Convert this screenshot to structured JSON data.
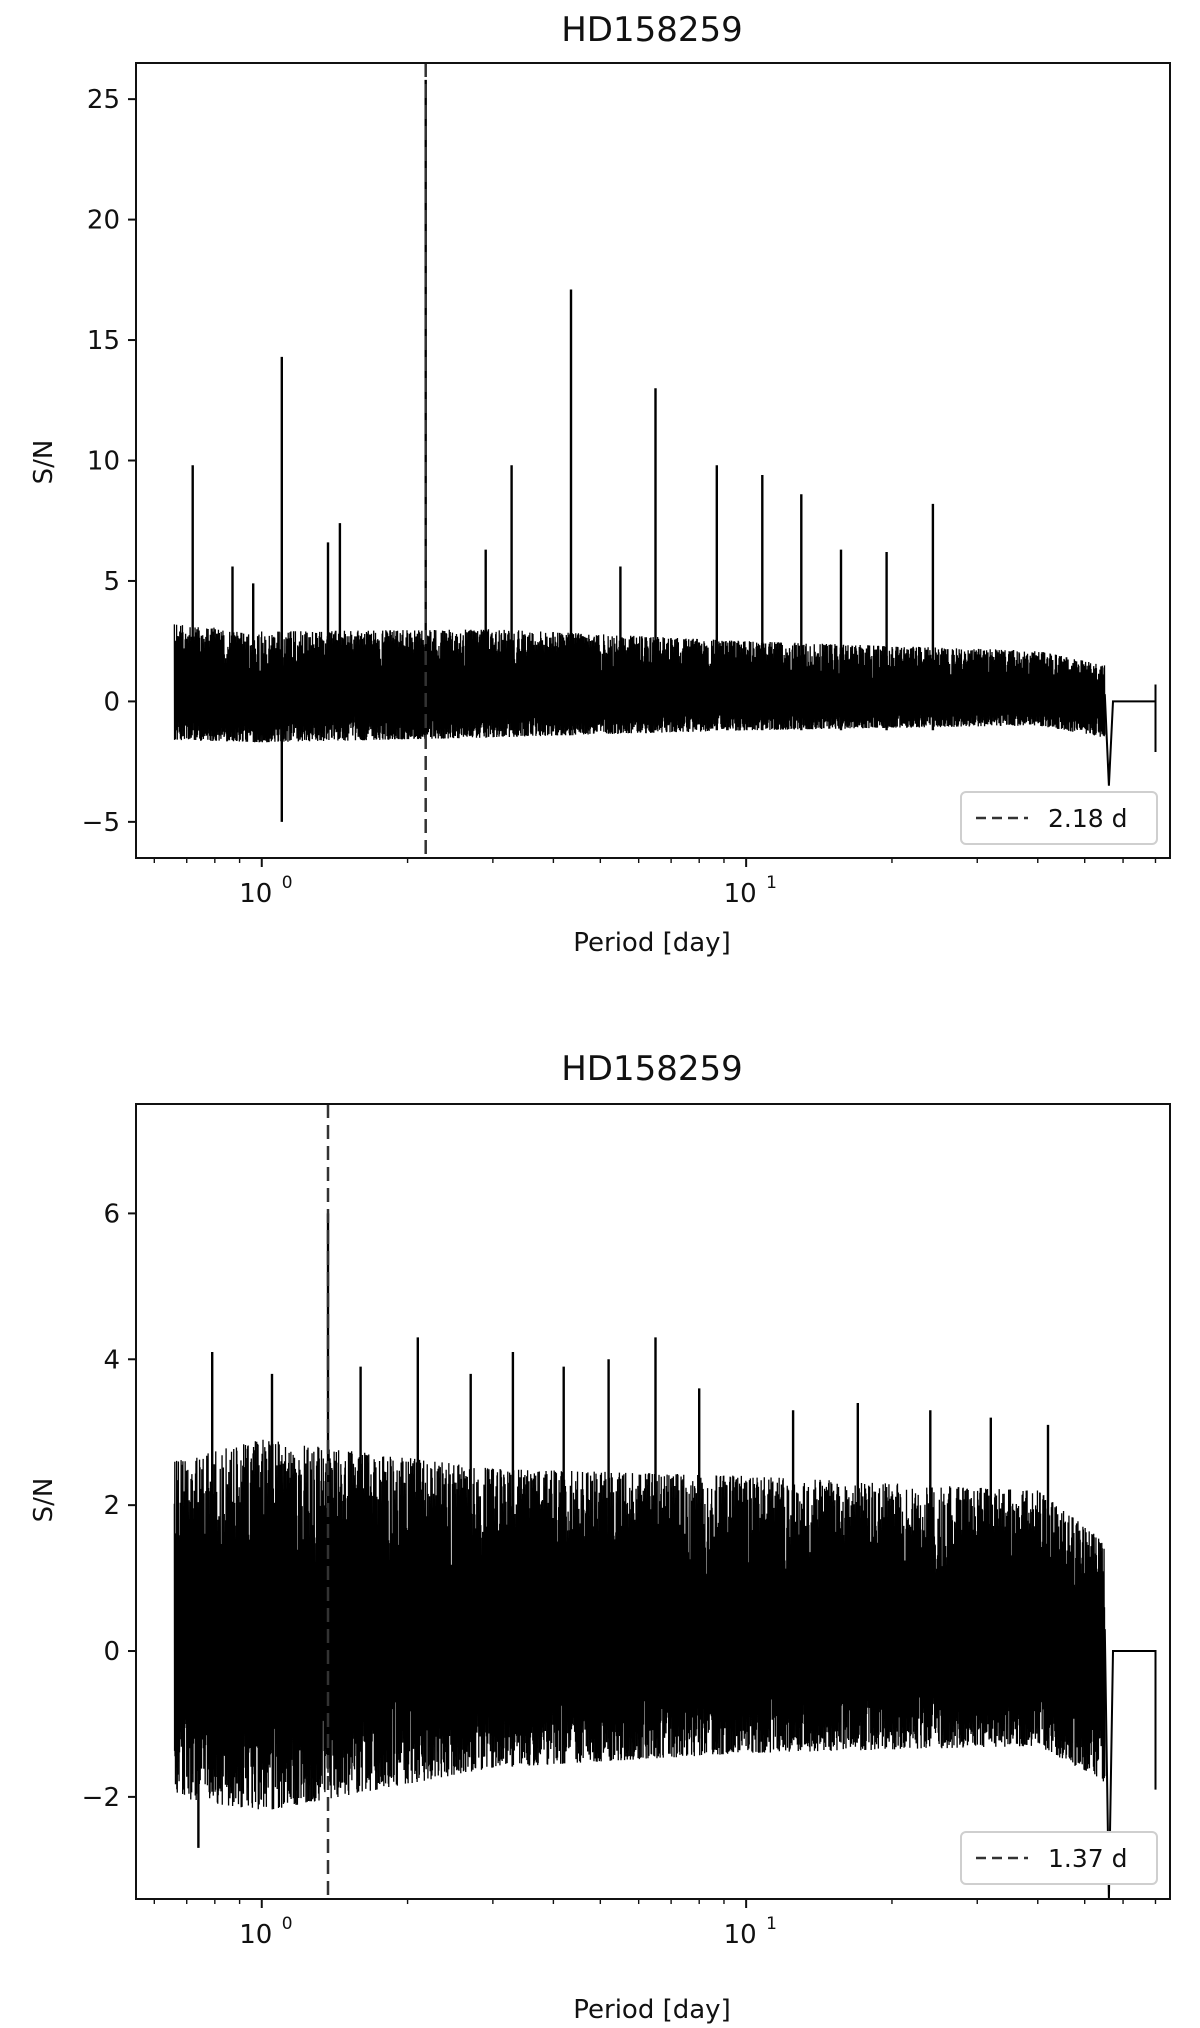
{
  "chart_data": [
    {
      "type": "line",
      "title": "HD158259",
      "xlabel": "Period [day]",
      "ylabel": "S/N",
      "xscale": "log",
      "xlim": [
        0.55,
        75
      ],
      "ylim": [
        -6.5,
        26.5
      ],
      "yticks": [
        -5,
        0,
        5,
        10,
        15,
        20,
        25
      ],
      "xticks": [
        {
          "base": "10",
          "exp": "0",
          "value": 1
        },
        {
          "base": "10",
          "exp": "1",
          "value": 10
        }
      ],
      "grid": false,
      "legend": {
        "position": "lower-right",
        "entries": [
          {
            "label": "2.18 d",
            "style": "dashed"
          }
        ]
      },
      "marker_period": 2.18,
      "x_range": [
        0.66,
        70
      ],
      "noise_band": [
        [
          0.66,
          -1.6,
          3.2
        ],
        [
          1.0,
          -1.7,
          2.9
        ],
        [
          3.0,
          -1.5,
          3.0
        ],
        [
          10.0,
          -1.2,
          2.5
        ],
        [
          40.0,
          -1.0,
          2.1
        ],
        [
          55.0,
          -1.5,
          1.5
        ]
      ],
      "spikes": [
        {
          "x": 0.72,
          "top": 9.8
        },
        {
          "x": 0.87,
          "top": 5.6
        },
        {
          "x": 0.96,
          "top": 4.9
        },
        {
          "x": 1.1,
          "top": 14.3,
          "bottom": -5.0
        },
        {
          "x": 1.37,
          "top": 6.6
        },
        {
          "x": 1.45,
          "top": 7.4
        },
        {
          "x": 2.18,
          "top": 25.8
        },
        {
          "x": 2.9,
          "top": 6.3
        },
        {
          "x": 3.28,
          "top": 9.8
        },
        {
          "x": 4.35,
          "top": 17.1
        },
        {
          "x": 5.5,
          "top": 5.6
        },
        {
          "x": 6.5,
          "top": 13.0
        },
        {
          "x": 8.7,
          "top": 9.8
        },
        {
          "x": 10.8,
          "top": 9.4
        },
        {
          "x": 13.0,
          "top": 8.6
        },
        {
          "x": 15.7,
          "top": 6.3
        },
        {
          "x": 19.5,
          "top": 6.2
        },
        {
          "x": 24.3,
          "top": 8.2
        }
      ],
      "tail": {
        "x_start": 55.0,
        "x_end": 70.0,
        "value": 0.0,
        "dip": -3.5,
        "end_low": -2.1,
        "end_high": 0.7
      }
    },
    {
      "type": "line",
      "title": "HD158259",
      "xlabel": "Period [day]",
      "ylabel": "S/N",
      "xscale": "log",
      "xlim": [
        0.55,
        75
      ],
      "ylim": [
        -3.4,
        7.5
      ],
      "yticks": [
        -2,
        0,
        2,
        4,
        6
      ],
      "xticks": [
        {
          "base": "10",
          "exp": "0",
          "value": 1
        },
        {
          "base": "10",
          "exp": "1",
          "value": 10
        }
      ],
      "grid": false,
      "legend": {
        "position": "lower-right",
        "entries": [
          {
            "label": "1.37 d",
            "style": "dashed"
          }
        ]
      },
      "marker_period": 1.37,
      "x_range": [
        0.66,
        70
      ],
      "noise_band": [
        [
          0.66,
          -2.0,
          2.6
        ],
        [
          1.0,
          -2.2,
          2.9
        ],
        [
          3.0,
          -1.6,
          2.5
        ],
        [
          10.0,
          -1.4,
          2.4
        ],
        [
          40.0,
          -1.3,
          2.2
        ],
        [
          55.0,
          -1.8,
          1.5
        ]
      ],
      "spikes": [
        {
          "x": 0.74,
          "bottom": -2.7
        },
        {
          "x": 0.79,
          "top": 4.1
        },
        {
          "x": 1.05,
          "top": 3.8
        },
        {
          "x": 1.37,
          "top": 6.0
        },
        {
          "x": 1.6,
          "top": 3.9
        },
        {
          "x": 2.1,
          "top": 4.3
        },
        {
          "x": 2.7,
          "top": 3.8
        },
        {
          "x": 3.3,
          "top": 4.1
        },
        {
          "x": 4.2,
          "top": 3.9
        },
        {
          "x": 5.2,
          "top": 4.0
        },
        {
          "x": 6.5,
          "top": 4.3
        },
        {
          "x": 8.0,
          "top": 3.6
        },
        {
          "x": 12.5,
          "top": 3.3
        },
        {
          "x": 17.0,
          "top": 3.4
        },
        {
          "x": 24.0,
          "top": 3.3
        },
        {
          "x": 32.0,
          "top": 3.2
        },
        {
          "x": 42.0,
          "top": 3.1
        }
      ],
      "tail": {
        "x_start": 55.0,
        "x_end": 70.0,
        "value": 0.0,
        "dip": -3.4,
        "end_low": -1.9,
        "end_high": 0.0
      }
    }
  ]
}
